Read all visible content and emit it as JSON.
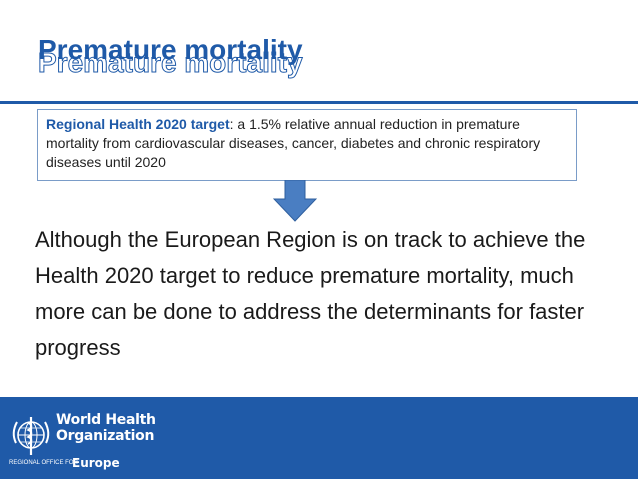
{
  "slide": {
    "title": "Premature mortality",
    "target_box": {
      "lead": "Regional Health 2020 target",
      "text": ": a 1.5% relative annual reduction in premature mortality from cardiovascular diseases, cancer, diabetes and chronic respiratory diseases until 2020"
    },
    "body": "Although the European Region is on track to achieve the Health 2020 target to reduce premature mortality, much more can be done to address the determinants for faster progress"
  },
  "footer": {
    "org_line1": "World Health",
    "org_line2": "Organization",
    "regional_office": "Regional Office for",
    "region": "Europe",
    "logo_icon": "who-emblem-icon"
  },
  "colors": {
    "brand_blue": "#1f5aa8",
    "arrow_blue": "#4a7ec2",
    "box_border": "#7a9cc8"
  }
}
